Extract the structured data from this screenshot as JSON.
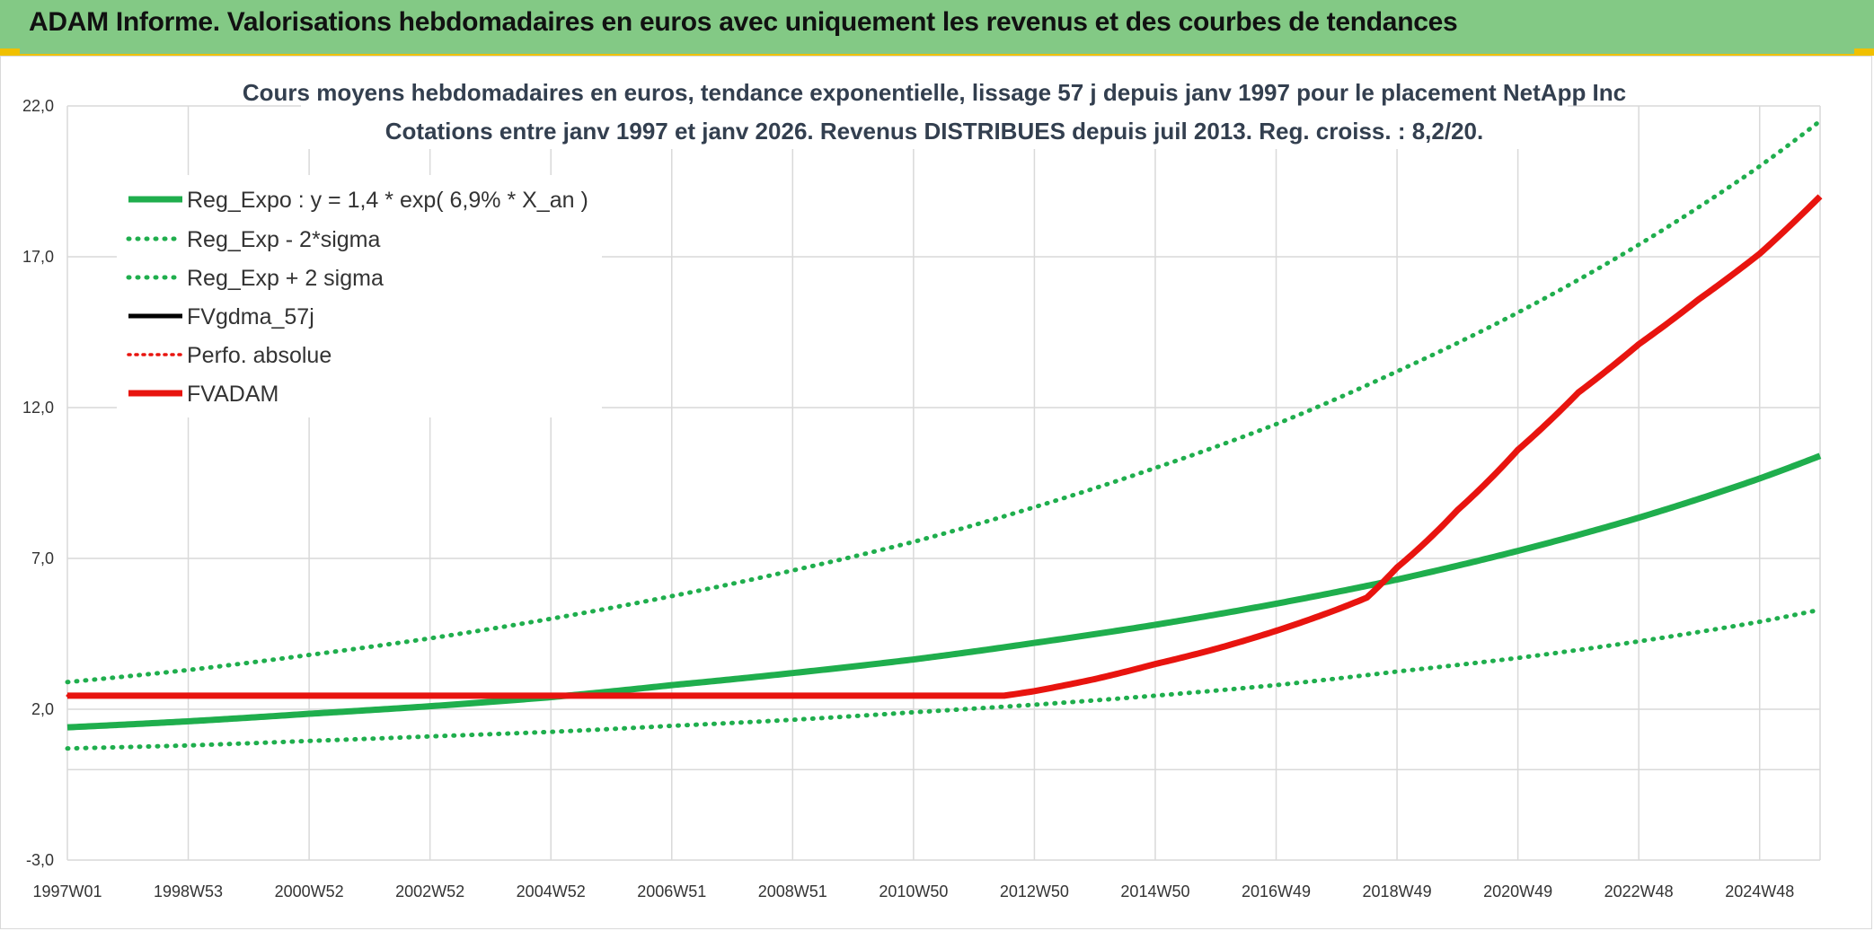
{
  "banner": {
    "title": "ADAM Informe. Valorisations hebdomadaires en euros avec uniquement les revenus et des courbes de tendances"
  },
  "colors": {
    "banner": "#83c985",
    "accent": "#f0c000",
    "trend": "#1fae4d",
    "fvadam": "#e8140f",
    "fvgdma": "#000000"
  },
  "chart_data": {
    "type": "line",
    "title": "Cours moyens hebdomadaires en euros, tendance exponentielle, lissage 57 j depuis janv 1997 pour le placement NetApp Inc",
    "subtitle": "Cotations entre janv 1997 et janv 2026. Revenus DISTRIBUES depuis juil 2013. Reg. croiss. : 8,2/20.",
    "xlabel": "",
    "ylabel": "",
    "ylim": [
      -3,
      22
    ],
    "yticks": [
      "22,0",
      "17,0",
      "12,0",
      "7,0",
      "2,0",
      "-3,0"
    ],
    "ytick_values": [
      22,
      17,
      12,
      7,
      2,
      -3
    ],
    "xlim": [
      1997.0,
      2026.0
    ],
    "xticks": [
      "1997W01",
      "1998W53",
      "2000W52",
      "2002W52",
      "2004W52",
      "2006W51",
      "2008W51",
      "2010W50",
      "2012W50",
      "2014W50",
      "2016W49",
      "2018W49",
      "2020W49",
      "2022W48",
      "2024W48"
    ],
    "xtick_values": [
      1997.0,
      1999.0,
      2001.0,
      2003.0,
      2005.0,
      2007.0,
      2009.0,
      2011.0,
      2013.0,
      2015.0,
      2017.0,
      2019.0,
      2021.0,
      2023.0,
      2025.0
    ],
    "grid": true,
    "legend_position": "top-left",
    "series": [
      {
        "name": "Reg_Expo : y = 1,4 * exp( 6,9% *  X_an )",
        "style": "solid",
        "color": "#1fae4d",
        "x": [
          1997,
          1999,
          2001,
          2003,
          2005,
          2007,
          2009,
          2011,
          2013,
          2015,
          2017,
          2019,
          2021,
          2023,
          2025,
          2026
        ],
        "values": [
          1.4,
          1.6,
          1.85,
          2.1,
          2.4,
          2.8,
          3.2,
          3.65,
          4.2,
          4.8,
          5.5,
          6.3,
          7.25,
          8.35,
          9.65,
          10.4
        ]
      },
      {
        "name": "Reg_Exp - 2*sigma",
        "style": "dotted",
        "color": "#1fae4d",
        "x": [
          1997,
          1999,
          2001,
          2003,
          2005,
          2007,
          2009,
          2011,
          2013,
          2015,
          2017,
          2019,
          2021,
          2023,
          2025,
          2026
        ],
        "values": [
          0.7,
          0.8,
          0.95,
          1.1,
          1.25,
          1.45,
          1.65,
          1.9,
          2.15,
          2.45,
          2.8,
          3.25,
          3.7,
          4.25,
          4.9,
          5.3
        ]
      },
      {
        "name": "Reg_Exp + 2 sigma",
        "style": "dotted",
        "color": "#1fae4d",
        "x": [
          1997,
          1999,
          2001,
          2003,
          2005,
          2007,
          2009,
          2011,
          2013,
          2015,
          2017,
          2019,
          2021,
          2023,
          2025,
          2026
        ],
        "values": [
          2.9,
          3.3,
          3.8,
          4.35,
          5.0,
          5.75,
          6.6,
          7.55,
          8.7,
          10.0,
          11.45,
          13.2,
          15.15,
          17.4,
          20.0,
          21.5
        ]
      },
      {
        "name": "FVgdma_57j",
        "style": "solid",
        "color": "#000000",
        "x": [],
        "values": []
      },
      {
        "name": "Perfo. absolue",
        "style": "dotted",
        "color": "#e8140f",
        "x": [
          1997,
          2012.5
        ],
        "values": [
          2.45,
          2.45
        ]
      },
      {
        "name": "FVADAM",
        "style": "solid",
        "color": "#e8140f",
        "x": [
          1997,
          2012.5,
          2013,
          2014,
          2015,
          2016,
          2017,
          2018,
          2018.5,
          2019,
          2020,
          2021,
          2022,
          2023,
          2024,
          2025,
          2026
        ],
        "values": [
          2.45,
          2.45,
          2.6,
          3.0,
          3.5,
          4.0,
          4.6,
          5.3,
          5.7,
          6.7,
          8.6,
          10.6,
          12.5,
          14.1,
          15.6,
          17.1,
          19.0
        ]
      }
    ]
  }
}
